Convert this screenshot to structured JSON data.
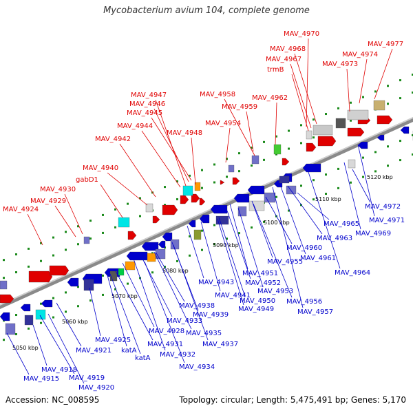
{
  "title": "Mycobacterium avium 104, complete genome",
  "footer": {
    "accession": "Accession: NC_008595",
    "summary": "Topology: circular; Length: 5,475,491 bp; Genes: 5,170"
  },
  "kbp_labels": [
    "5050 kbp",
    "5060 kbp",
    "5070 kbp",
    "5080 kbp",
    "5090 kbp",
    "5100 kbp",
    "5110 kbp",
    "5120 kbp"
  ],
  "top_labels": [
    "MAV_4970",
    "MAV_4977",
    "MAV_4968",
    "MAV_4974",
    "MAV_4967",
    "MAV_4973",
    "trmB",
    "MAV_4947",
    "MAV_4958",
    "MAV_4962",
    "MAV_4946",
    "MAV_4959",
    "MAV_4945",
    "MAV_4944",
    "MAV_4954",
    "MAV_4948",
    "MAV_4942",
    "MAV_4940",
    "gabD1",
    "MAV_4930",
    "MAV_4929",
    "MAV_4924"
  ],
  "bottom_labels": [
    "MAV_4972",
    "MAV_4971",
    "MAV_4965",
    "MAV_4969",
    "MAV_4963",
    "MAV_4960",
    "MAV_4961",
    "MAV_4955",
    "MAV_4964",
    "MAV_4951",
    "MAV_4952",
    "MAV_4943",
    "MAV_4953",
    "MAV_4941",
    "MAV_4950",
    "MAV_4956",
    "MAV_4938",
    "MAV_4949",
    "MAV_4957",
    "MAV_4939",
    "MAV_4933",
    "MAV_4935",
    "MAV_4928",
    "MAV_4937",
    "MAV_4925",
    "MAV_4931",
    "katA",
    "MAV_4921",
    "MAV_4932",
    "katA",
    "MAV_4918",
    "MAV_4934",
    "MAV_4919",
    "MAV_4915",
    "MAV_4920"
  ],
  "colors": {
    "top_label": "#e00000",
    "bottom_label": "#0000cc",
    "forward_gene": "#e00000",
    "reverse_gene": "#0000cc",
    "backbone": "#888888"
  }
}
